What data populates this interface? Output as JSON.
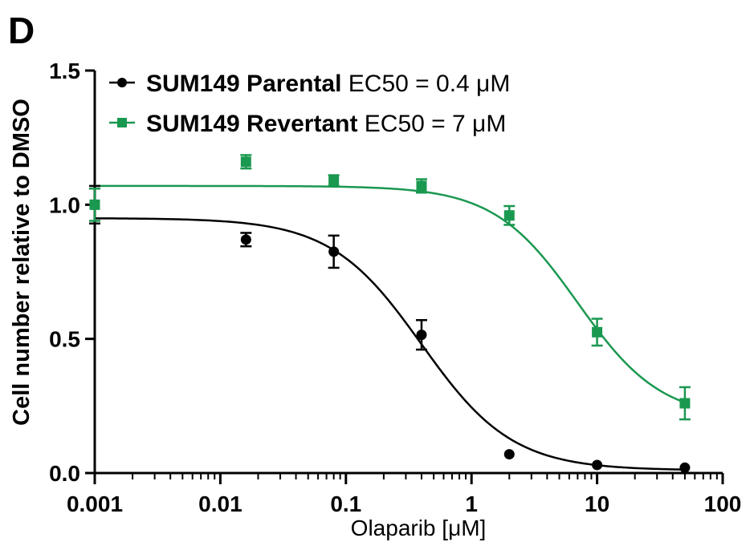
{
  "panel_label": "D",
  "chart_data": {
    "type": "scatter",
    "xlabel": "Olaparib [μM]",
    "ylabel": "Cell number relative to DMSO",
    "xscale": "log",
    "xlim": [
      0.001,
      100
    ],
    "ylim": [
      0,
      1.5
    ],
    "x_ticks": [
      0.001,
      0.01,
      0.1,
      1,
      10,
      100
    ],
    "x_tick_labels": [
      "0.001",
      "0.01",
      "0.1",
      "1",
      "10",
      "100"
    ],
    "y_ticks": [
      0,
      0.5,
      1.0,
      1.5
    ],
    "y_tick_labels": [
      "0.0",
      "0.5",
      "1.0",
      "1.5"
    ],
    "grid": false,
    "legend_position": "top-left",
    "series": [
      {
        "name": "SUM149 Parental",
        "legend_suffix": "EC50 = 0.4 μM",
        "color": "#000000",
        "marker": "circle",
        "x": [
          0.001,
          0.016,
          0.08,
          0.4,
          2,
          10,
          50
        ],
        "y": [
          1.0,
          0.87,
          0.825,
          0.515,
          0.07,
          0.03,
          0.02
        ],
        "err": [
          0.07,
          0.025,
          0.06,
          0.055,
          0.0,
          0.0,
          0.0
        ],
        "fit": {
          "top": 0.95,
          "bottom": 0.01,
          "ec50": 0.4,
          "hill": 1.2
        }
      },
      {
        "name": "SUM149 Revertant",
        "legend_suffix": "EC50 = 7 μM",
        "color": "#1a9850",
        "marker": "square",
        "x": [
          0.001,
          0.016,
          0.08,
          0.4,
          2,
          10,
          50
        ],
        "y": [
          1.0,
          1.16,
          1.09,
          1.07,
          0.96,
          0.525,
          0.26
        ],
        "err": [
          0.06,
          0.025,
          0.02,
          0.025,
          0.035,
          0.05,
          0.06
        ],
        "fit": {
          "top": 1.07,
          "bottom": 0.2,
          "ec50": 7,
          "hill": 1.3
        }
      }
    ]
  }
}
